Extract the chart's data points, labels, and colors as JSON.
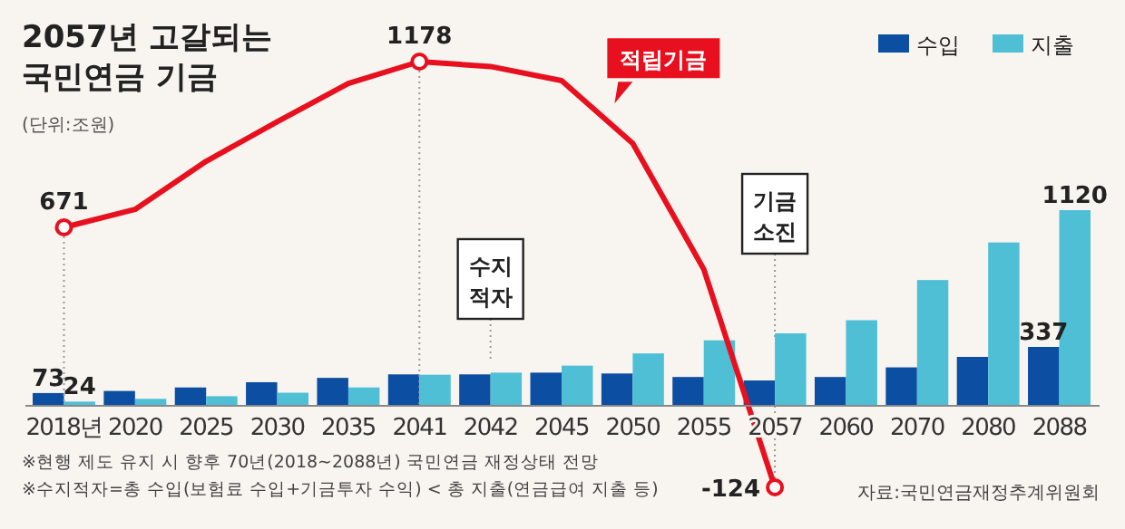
{
  "chart_data": {
    "type": "bar",
    "title": "2057년 고갈되는 국민연금 기금",
    "subtitle": "(단위:조원)",
    "categories": [
      "2018년",
      "2020",
      "2025",
      "2030",
      "2035",
      "2041",
      "2042",
      "2045",
      "2050",
      "2055",
      "2057",
      "2060",
      "2070",
      "2080",
      "2088"
    ],
    "series": [
      {
        "name": "수입",
        "color": "#0b4ea2",
        "values": [
          73,
          85,
          105,
          135,
          160,
          180,
          180,
          190,
          185,
          165,
          145,
          165,
          220,
          280,
          337
        ],
        "value_labels": [
          "73",
          null,
          null,
          null,
          null,
          null,
          null,
          null,
          null,
          null,
          null,
          null,
          null,
          null,
          "337"
        ]
      },
      {
        "name": "지출",
        "color": "#4fbfd6",
        "values": [
          24,
          40,
          55,
          75,
          105,
          178,
          190,
          230,
          300,
          375,
          415,
          490,
          720,
          935,
          1120
        ],
        "value_labels": [
          "24",
          null,
          null,
          null,
          null,
          null,
          null,
          null,
          null,
          null,
          null,
          null,
          null,
          null,
          "1120"
        ]
      },
      {
        "name": "적립기금",
        "type": "line",
        "axis": "y2",
        "color": "#e8101e",
        "values": [
          671,
          726,
          873,
          994,
          1111,
          1178,
          1163,
          1120,
          928,
          543,
          -124,
          null,
          null,
          null,
          null
        ],
        "value_labels": [
          "671",
          null,
          null,
          null,
          null,
          "1178",
          null,
          null,
          null,
          null,
          "-124",
          null,
          null,
          null,
          null
        ]
      }
    ],
    "legend": "top right",
    "annotations": [
      {
        "text": "수지 적자",
        "x": "2042"
      },
      {
        "text": "기금 소진",
        "x": "2057"
      },
      "※현행 제도 유지 시 향후 70년(2018~2088년) 국민연금 재정상태 전망",
      "※수지적자=총 수입(보험료 수입+기금투자 수익) < 총 지출(연금급여 지출 등)",
      "자료:국민연금재정추계위원회"
    ]
  }
}
